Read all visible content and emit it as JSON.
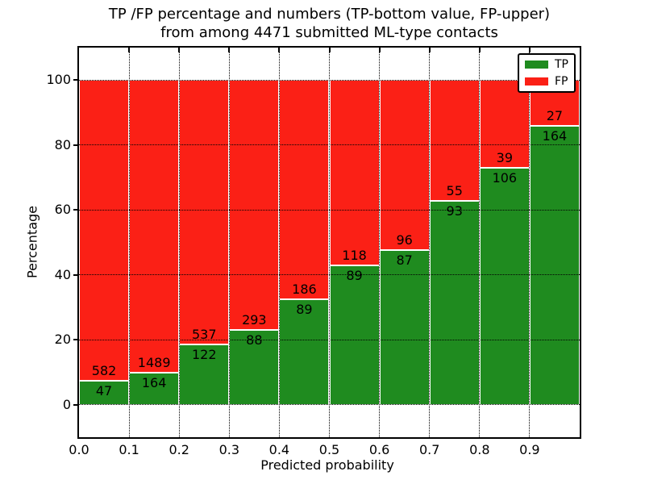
{
  "figure": {
    "title_line1": "TP /FP percentage and numbers (TP-bottom value, FP-upper)",
    "title_line2": "from among 4471 submitted ML-type contacts"
  },
  "chart_data": {
    "type": "bar",
    "stacked": true,
    "units": "percent_of_bin_total",
    "title": "TP /FP percentage and numbers (TP-bottom value, FP-upper)\nfrom among 4471 submitted ML-type contacts",
    "xlabel": "Predicted probability",
    "ylabel": "Percentage",
    "total_contacts": 4471,
    "categories": [
      "0.0-0.1",
      "0.1-0.2",
      "0.2-0.3",
      "0.3-0.4",
      "0.4-0.5",
      "0.5-0.6",
      "0.6-0.7",
      "0.7-0.8",
      "0.8-0.9",
      "0.9-1.0"
    ],
    "x_tick_labels": [
      "0.0",
      "0.1",
      "0.2",
      "0.3",
      "0.4",
      "0.5",
      "0.6",
      "0.7",
      "0.8",
      "0.9"
    ],
    "y_ticks": [
      0,
      20,
      40,
      60,
      80,
      100
    ],
    "y_tick_labels": [
      "0",
      "20",
      "40",
      "60",
      "80",
      "100"
    ],
    "xlim": [
      0,
      1
    ],
    "ylim": [
      -10,
      110
    ],
    "grid": true,
    "grid_style": "dotted",
    "legend_position": "upper right",
    "series": [
      {
        "name": "TP",
        "position": "bottom",
        "color": "#1f8b1f",
        "counts": [
          47,
          164,
          122,
          88,
          89,
          89,
          87,
          93,
          106,
          164
        ]
      },
      {
        "name": "FP",
        "position": "top",
        "color": "#fb2016",
        "counts": [
          582,
          1489,
          537,
          293,
          186,
          118,
          96,
          55,
          39,
          27
        ]
      }
    ],
    "tp_percent_of_bin": [
      7.5,
      9.9,
      18.5,
      23.1,
      32.4,
      43.0,
      47.5,
      62.8,
      73.1,
      85.9
    ],
    "frame_color": "#000000"
  }
}
